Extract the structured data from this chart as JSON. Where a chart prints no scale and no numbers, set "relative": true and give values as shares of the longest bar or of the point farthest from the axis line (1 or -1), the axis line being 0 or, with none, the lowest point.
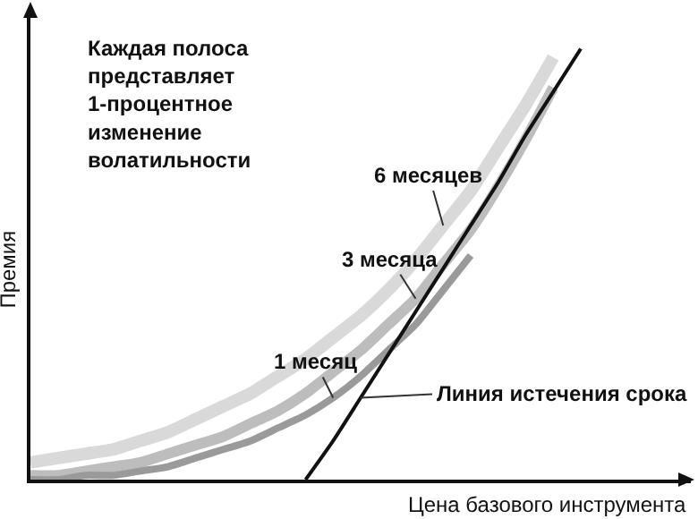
{
  "chart_data": {
    "type": "line",
    "relative": true,
    "xlabel": "Цена базового инструмента",
    "ylabel": "Премия",
    "categories": [
      null,
      null,
      null,
      null,
      null,
      null,
      null,
      null,
      null,
      null,
      null,
      null,
      null,
      null,
      null,
      null,
      null,
      null,
      null,
      null,
      null,
      null,
      null,
      null,
      null
    ],
    "series": [
      {
        "name": "6 месяцев",
        "color": "#d9d9d9",
        "values": [
          0.04,
          0.05,
          0.06,
          0.07,
          0.09,
          0.11,
          0.14,
          0.17,
          0.2,
          0.24,
          0.28,
          0.33,
          0.38,
          0.44,
          0.51,
          0.59,
          0.67,
          0.77,
          0.87,
          0.98,
          null,
          null,
          null,
          null,
          null
        ]
      },
      {
        "name": "3 месяца",
        "color": "#bdbdbd",
        "values": [
          0.01,
          0.01,
          0.02,
          0.03,
          0.04,
          0.06,
          0.08,
          0.1,
          0.13,
          0.16,
          0.2,
          0.25,
          0.3,
          0.36,
          0.42,
          0.5,
          0.58,
          0.68,
          0.79,
          0.91,
          null,
          null,
          null,
          null,
          null
        ]
      },
      {
        "name": "1 месяц",
        "color": "#9a9a9a",
        "values": [
          0,
          0,
          0.01,
          0.01,
          0.02,
          0.03,
          0.05,
          0.07,
          0.09,
          0.12,
          0.15,
          0.19,
          0.24,
          0.3,
          0.36,
          0.44,
          0.52,
          null,
          null,
          null,
          null,
          null,
          null,
          null,
          null
        ]
      },
      {
        "name": "Линия истечения срока",
        "color": "#111111",
        "values": [
          null,
          null,
          null,
          null,
          null,
          null,
          null,
          null,
          null,
          null,
          0,
          0.09,
          0.19,
          0.29,
          0.39,
          0.49,
          0.59,
          0.69,
          0.8,
          0.9,
          1,
          null,
          null,
          null,
          null
        ]
      }
    ],
    "annotations": [
      "Каждая полоса представляет 1-процентное изменение волатильности"
    ],
    "grid": false,
    "legend": false
  }
}
